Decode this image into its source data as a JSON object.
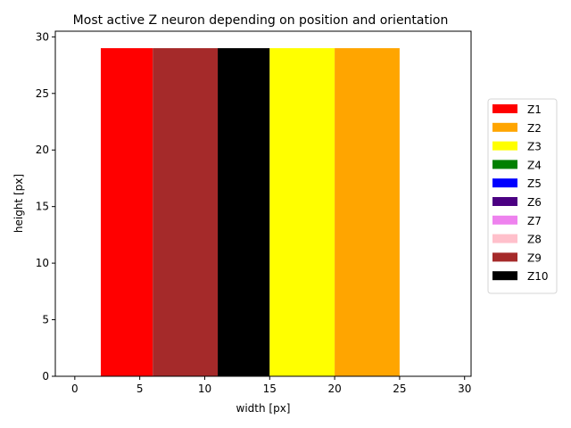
{
  "chart_data": {
    "type": "bar",
    "title": "Most active Z neuron depending on position and orientation",
    "xlabel": "width [px]",
    "ylabel": "height [px]",
    "xlim": [
      -1.5,
      30.5
    ],
    "ylim": [
      0,
      30.5
    ],
    "x_ticks": [
      0,
      5,
      10,
      15,
      20,
      25,
      30
    ],
    "y_ticks": [
      0,
      5,
      10,
      15,
      20,
      25,
      30
    ],
    "regions": [
      {
        "neuron": "Z1",
        "x_start": 2,
        "x_end": 6,
        "y_start": 0,
        "y_end": 29
      },
      {
        "neuron": "Z9",
        "x_start": 6,
        "x_end": 11,
        "y_start": 0,
        "y_end": 29
      },
      {
        "neuron": "Z10",
        "x_start": 11,
        "x_end": 15,
        "y_start": 0,
        "y_end": 29
      },
      {
        "neuron": "Z3",
        "x_start": 15,
        "x_end": 20,
        "y_start": 0,
        "y_end": 29
      },
      {
        "neuron": "Z2",
        "x_start": 20,
        "x_end": 25,
        "y_start": 0,
        "y_end": 29
      }
    ],
    "legend": {
      "placement": "center-right, outside plot",
      "entries": [
        {
          "label": "Z1",
          "color": "#ff0000"
        },
        {
          "label": "Z2",
          "color": "#ffa500"
        },
        {
          "label": "Z3",
          "color": "#ffff00"
        },
        {
          "label": "Z4",
          "color": "#008000"
        },
        {
          "label": "Z5",
          "color": "#0000ff"
        },
        {
          "label": "Z6",
          "color": "#4b0082"
        },
        {
          "label": "Z7",
          "color": "#ee82ee"
        },
        {
          "label": "Z8",
          "color": "#ffc0cb"
        },
        {
          "label": "Z9",
          "color": "#a52a2a"
        },
        {
          "label": "Z10",
          "color": "#000000"
        }
      ]
    },
    "grid": false
  }
}
